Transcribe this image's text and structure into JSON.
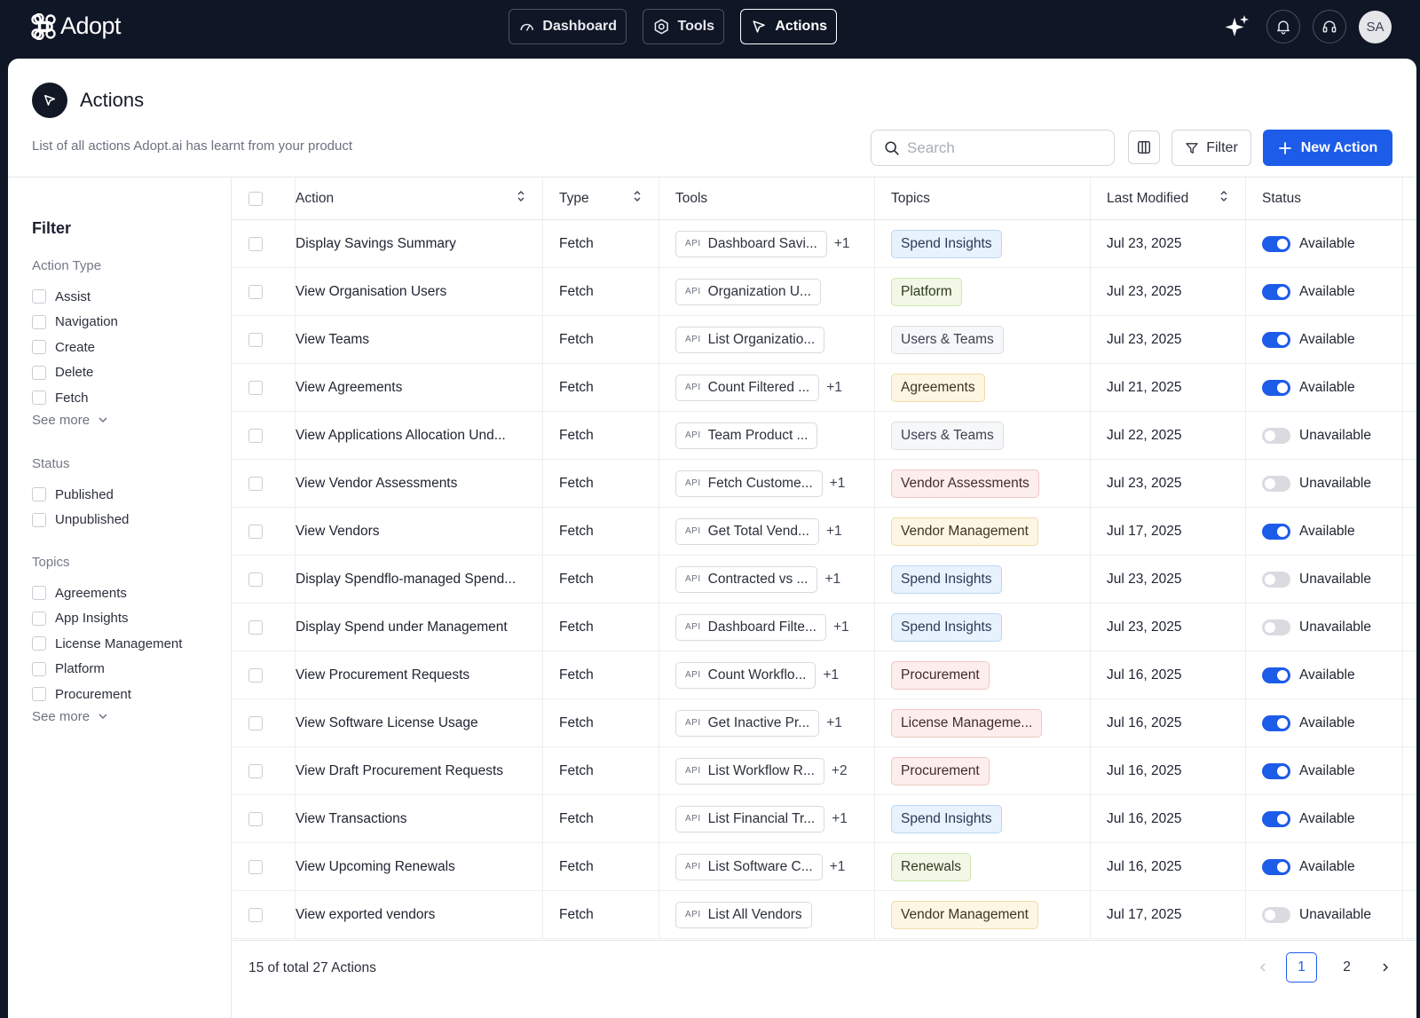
{
  "app": {
    "name": "Adopt"
  },
  "nav": {
    "items": [
      {
        "label": "Dashboard",
        "icon": "gauge-icon"
      },
      {
        "label": "Tools",
        "icon": "hexagon-gear-icon"
      },
      {
        "label": "Actions",
        "icon": "cursor-arrow-icon",
        "active": true
      }
    ]
  },
  "user": {
    "initials": "SA"
  },
  "page": {
    "title": "Actions",
    "subtitle": "List of all actions Adopt.ai has learnt from your product",
    "search_placeholder": "Search",
    "filter_label": "Filter",
    "new_action_label": "New Action"
  },
  "sidebar": {
    "title": "Filter",
    "groups": [
      {
        "label": "Action Type",
        "options": [
          "Assist",
          "Navigation",
          "Create",
          "Delete",
          "Fetch"
        ],
        "see_more": "See more"
      },
      {
        "label": "Status",
        "options": [
          "Published",
          "Unpublished"
        ]
      },
      {
        "label": "Topics",
        "options": [
          "Agreements",
          "App Insights",
          "License Management",
          "Platform",
          "Procurement"
        ],
        "see_more": "See more"
      }
    ]
  },
  "table": {
    "headers": {
      "action": "Action",
      "type": "Type",
      "tools": "Tools",
      "topics": "Topics",
      "modified": "Last Modified",
      "status": "Status"
    },
    "api_tag": "API",
    "rows": [
      {
        "action": "Display Savings Summary",
        "type": "Fetch",
        "tool": "Dashboard Savi...",
        "extra": "+1",
        "topic": "Spend Insights",
        "topic_color": "blue",
        "modified": "Jul 23, 2025",
        "status": "Available",
        "on": true
      },
      {
        "action": "View Organisation Users",
        "type": "Fetch",
        "tool": "Organization U...",
        "extra": "",
        "topic": "Platform",
        "topic_color": "green",
        "modified": "Jul 23, 2025",
        "status": "Available",
        "on": true
      },
      {
        "action": "View Teams",
        "type": "Fetch",
        "tool": "List Organizatio...",
        "extra": "",
        "topic": "Users & Teams",
        "topic_color": "gray",
        "modified": "Jul 23, 2025",
        "status": "Available",
        "on": true
      },
      {
        "action": "View Agreements",
        "type": "Fetch",
        "tool": "Count Filtered ...",
        "extra": "+1",
        "topic": "Agreements",
        "topic_color": "yellow",
        "modified": "Jul 21, 2025",
        "status": "Available",
        "on": true
      },
      {
        "action": "View Applications Allocation Und...",
        "type": "Fetch",
        "tool": "Team Product ...",
        "extra": "",
        "topic": "Users & Teams",
        "topic_color": "gray",
        "modified": "Jul 22, 2025",
        "status": "Unavailable",
        "on": false
      },
      {
        "action": "View Vendor Assessments",
        "type": "Fetch",
        "tool": "Fetch Custome...",
        "extra": "+1",
        "topic": "Vendor Assessments",
        "topic_color": "red",
        "modified": "Jul 23, 2025",
        "status": "Unavailable",
        "on": false
      },
      {
        "action": "View Vendors",
        "type": "Fetch",
        "tool": "Get Total Vend...",
        "extra": "+1",
        "topic": "Vendor Management",
        "topic_color": "yellow",
        "modified": "Jul 17, 2025",
        "status": "Available",
        "on": true
      },
      {
        "action": "Display Spendflo-managed Spend...",
        "type": "Fetch",
        "tool": "Contracted vs ...",
        "extra": "+1",
        "topic": "Spend Insights",
        "topic_color": "blue",
        "modified": "Jul 23, 2025",
        "status": "Unavailable",
        "on": false
      },
      {
        "action": "Display Spend under Management",
        "type": "Fetch",
        "tool": "Dashboard Filte...",
        "extra": "+1",
        "topic": "Spend Insights",
        "topic_color": "blue",
        "modified": "Jul 23, 2025",
        "status": "Unavailable",
        "on": false
      },
      {
        "action": "View Procurement Requests",
        "type": "Fetch",
        "tool": "Count Workflo...",
        "extra": "+1",
        "topic": "Procurement",
        "topic_color": "red",
        "modified": "Jul 16, 2025",
        "status": "Available",
        "on": true
      },
      {
        "action": "View Software License Usage",
        "type": "Fetch",
        "tool": "Get Inactive Pr...",
        "extra": "+1",
        "topic": "License Manageme...",
        "topic_color": "red",
        "modified": "Jul 16, 2025",
        "status": "Available",
        "on": true
      },
      {
        "action": "View Draft Procurement Requests",
        "type": "Fetch",
        "tool": "List Workflow R...",
        "extra": "+2",
        "topic": "Procurement",
        "topic_color": "red",
        "modified": "Jul 16, 2025",
        "status": "Available",
        "on": true
      },
      {
        "action": "View Transactions",
        "type": "Fetch",
        "tool": "List Financial Tr...",
        "extra": "+1",
        "topic": "Spend Insights",
        "topic_color": "blue",
        "modified": "Jul 16, 2025",
        "status": "Available",
        "on": true
      },
      {
        "action": "View Upcoming Renewals",
        "type": "Fetch",
        "tool": "List Software C...",
        "extra": "+1",
        "topic": "Renewals",
        "topic_color": "green",
        "modified": "Jul 16, 2025",
        "status": "Available",
        "on": true
      },
      {
        "action": "View exported vendors",
        "type": "Fetch",
        "tool": "List All Vendors",
        "extra": "",
        "topic": "Vendor Management",
        "topic_color": "yellow",
        "modified": "Jul 17, 2025",
        "status": "Unavailable",
        "on": false
      }
    ]
  },
  "footer": {
    "summary": "15 of total 27 Actions",
    "pages": [
      "1",
      "2"
    ],
    "current_page": "1"
  },
  "colors": {
    "accent": "#1d5ce8",
    "topbar": "#0f1626",
    "topic_blue": {
      "bg": "#e8f2fd",
      "border": "#b9d7f5",
      "text": "#2a3a55"
    },
    "topic_green": {
      "bg": "#f1f8e6",
      "border": "#cfe6ad",
      "text": "#2f3a22"
    },
    "topic_gray": {
      "bg": "#f6f7f8",
      "border": "#dcdfe4",
      "text": "#3c4252"
    },
    "topic_yellow": {
      "bg": "#fdf6e3",
      "border": "#efdca6",
      "text": "#3d3520"
    },
    "topic_red": {
      "bg": "#fdeeee",
      "border": "#f0c5c5",
      "text": "#432a2a"
    }
  }
}
